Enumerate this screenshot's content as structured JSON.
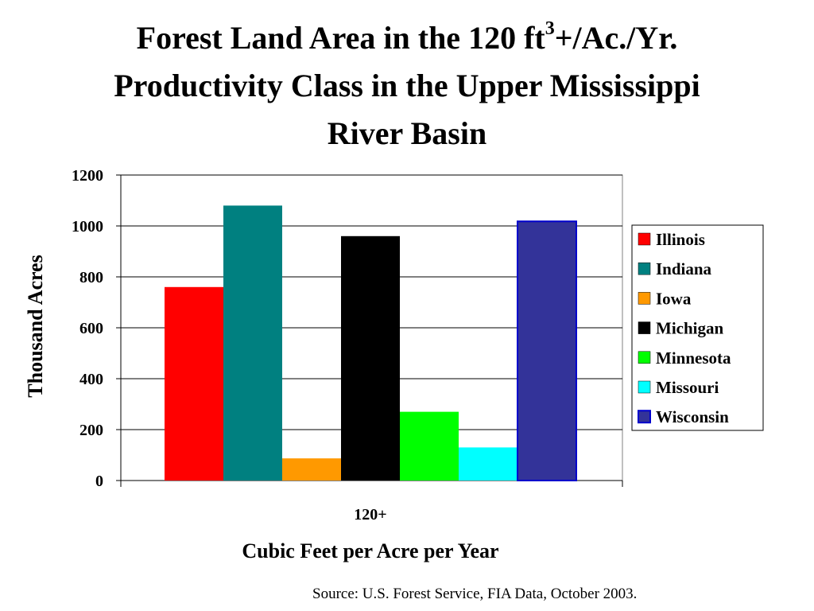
{
  "title": {
    "line1_pre": "Forest Land Area in the 120 ft",
    "line1_sup": "3",
    "line1_post": "+/Ac./Yr.",
    "line2": "Productivity Class in the Upper Mississippi",
    "line3": "River Basin"
  },
  "source": "Source: U.S. Forest Service, FIA Data, October 2003.",
  "chart_data": {
    "type": "bar",
    "categories": [
      "120+"
    ],
    "series": [
      {
        "name": "Illinois",
        "values": [
          760
        ],
        "color": "#ff0000"
      },
      {
        "name": "Indiana",
        "values": [
          1080
        ],
        "color": "#008080"
      },
      {
        "name": "Iowa",
        "values": [
          87
        ],
        "color": "#ff9900"
      },
      {
        "name": "Michigan",
        "values": [
          960
        ],
        "color": "#000000"
      },
      {
        "name": "Minnesota",
        "values": [
          270
        ],
        "color": "#00ff00"
      },
      {
        "name": "Missouri",
        "values": [
          130
        ],
        "color": "#00ffff"
      },
      {
        "name": "Wisconsin",
        "values": [
          1018
        ],
        "color": "#333399",
        "border": "#0000cc"
      }
    ],
    "xlabel": "Cubic Feet per Acre per Year",
    "ylabel": "Thousand Acres",
    "ylim": [
      0,
      1200
    ],
    "yticks": [
      "0",
      "200",
      "400",
      "600",
      "800",
      "1000",
      "1200"
    ],
    "grid": true,
    "legend": "right"
  }
}
